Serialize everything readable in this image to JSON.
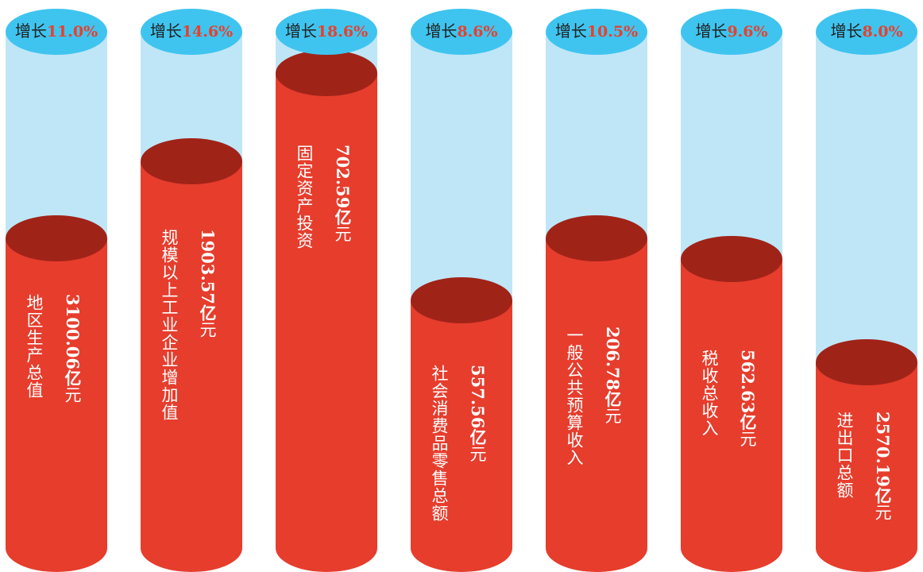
{
  "growth_prefix": "增长",
  "unit_yi": "亿",
  "unit_yuan": "元",
  "colors": {
    "tube": "#bfe6f7",
    "cap": "#3fc4ef",
    "fill": "#e63d2d",
    "fill_top": "#a02318",
    "growth_pct": "#e8402d"
  },
  "chart_data": {
    "type": "bar",
    "categories": [
      "地区生产总值",
      "规模以上工业企业增加值",
      "固定资产投资",
      "社会消费品零售总额",
      "一般公共预算收入",
      "税收总收入",
      "进出口总额"
    ],
    "series": [
      {
        "values": [
          3100.06,
          1903.57,
          702.59,
          557.56,
          206.78,
          562.63,
          2570.19
        ],
        "value_labels": [
          "3100.06",
          "1903.57",
          "702.59",
          "557.56",
          "206.78",
          "562.63",
          "2570.19"
        ]
      }
    ],
    "growth": [
      "11.0%",
      "14.6%",
      "18.6%",
      "8.6%",
      "10.5%",
      "9.6%",
      "8.0%"
    ],
    "fill_level": [
      0.6,
      0.75,
      0.92,
      0.48,
      0.6,
      0.56,
      0.36
    ]
  }
}
